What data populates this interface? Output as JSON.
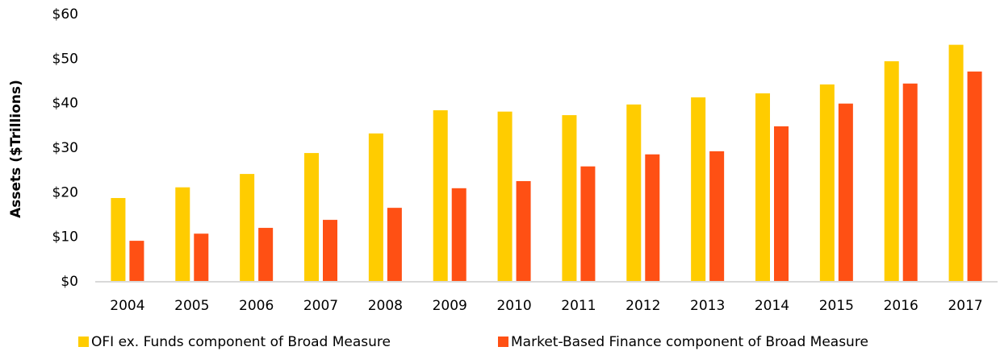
{
  "chart_data": {
    "type": "bar",
    "y_label": "Assets ($Trillions)",
    "categories": [
      "2004",
      "2005",
      "2006",
      "2007",
      "2008",
      "2009",
      "2010",
      "2011",
      "2012",
      "2013",
      "2014",
      "2015",
      "2016",
      "2017"
    ],
    "series": [
      {
        "name": "OFI ex. Funds component of Broad Measure",
        "color": "#FFCC00",
        "values": [
          18.8,
          21.2,
          24.2,
          28.9,
          33.3,
          38.5,
          38.2,
          37.4,
          39.8,
          41.4,
          42.3,
          44.3,
          49.5,
          53.2
        ]
      },
      {
        "name": "Market-Based Finance component of Broad Measure",
        "color": "#FF5014",
        "values": [
          9.2,
          10.8,
          12.1,
          13.9,
          16.6,
          21.0,
          22.6,
          25.9,
          28.6,
          29.3,
          34.9,
          40.0,
          44.5,
          47.2
        ]
      }
    ],
    "ylim": [
      0,
      60
    ],
    "yticks": [
      {
        "value": 0,
        "label": "$0"
      },
      {
        "value": 10,
        "label": "$10"
      },
      {
        "value": 20,
        "label": "$20"
      },
      {
        "value": 30,
        "label": "$30"
      },
      {
        "value": 40,
        "label": "$40"
      },
      {
        "value": 50,
        "label": "$50"
      },
      {
        "value": 60,
        "label": "$60"
      }
    ],
    "grid": false,
    "legend": "bottom"
  }
}
